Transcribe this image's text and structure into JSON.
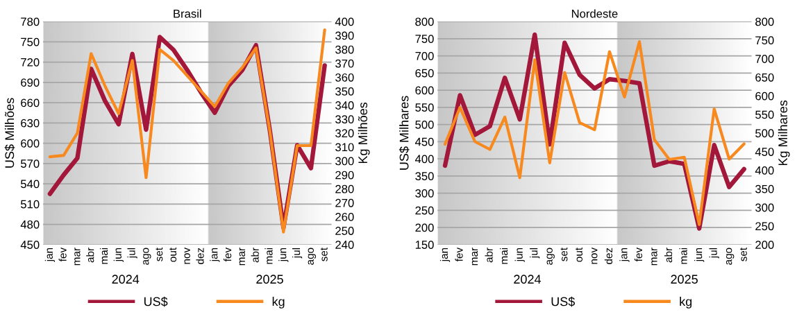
{
  "chart_data": [
    {
      "type": "line",
      "title": "Brasil",
      "ylabel": "US$ Milhões",
      "y2label": "Kg Milhões",
      "categories": [
        "jan",
        "fev",
        "mar",
        "abr",
        "mai",
        "jun",
        "jul",
        "ago",
        "set",
        "out",
        "nov",
        "dez",
        "jan",
        "fev",
        "mar",
        "abr",
        "mai",
        "jun",
        "jul",
        "ago",
        "set"
      ],
      "series": [
        {
          "name": "US$",
          "color": "#a3173a",
          "values": [
            525,
            553,
            578,
            710,
            663,
            628,
            732,
            620,
            757,
            738,
            708,
            675,
            645,
            685,
            708,
            745,
            620,
            475,
            597,
            563,
            715
          ]
        },
        {
          "name": "kg",
          "color": "#f7891f",
          "axis": "y2",
          "values": [
            303,
            304,
            320,
            377,
            354,
            334,
            372,
            288,
            380,
            372,
            361,
            350,
            339,
            356,
            367,
            381,
            322,
            249,
            311,
            311,
            394
          ]
        }
      ],
      "ylim": [
        450,
        780
      ],
      "yticks": [
        450,
        480,
        510,
        540,
        570,
        600,
        630,
        660,
        690,
        720,
        750,
        780
      ],
      "y2lim": [
        240,
        400
      ],
      "y2ticks": [
        240,
        250,
        260,
        270,
        280,
        290,
        300,
        310,
        320,
        330,
        340,
        350,
        360,
        370,
        380,
        390,
        400
      ],
      "grid": "y",
      "legend": "bottom",
      "line_style": "solid",
      "marker": "none",
      "annotations": [
        "2024",
        "2025"
      ]
    },
    {
      "type": "line",
      "title": "Nordeste",
      "ylabel": "US$ Milhares",
      "y2label": "Kg Milhares",
      "categories": [
        "jan",
        "fev",
        "mar",
        "abr",
        "mai",
        "jun",
        "jul",
        "ago",
        "set",
        "out",
        "nov",
        "dez",
        "jan",
        "fev",
        "mar",
        "abr",
        "mai",
        "jun",
        "jul",
        "ago",
        "set"
      ],
      "series": [
        {
          "name": "US$",
          "color": "#a3173a",
          "values": [
            380,
            585,
            470,
            495,
            636,
            515,
            762,
            442,
            738,
            645,
            605,
            632,
            627,
            620,
            380,
            393,
            385,
            197,
            440,
            318,
            370
          ]
        },
        {
          "name": "kg",
          "color": "#f7891f",
          "axis": "y2",
          "values": [
            470,
            569,
            477,
            456,
            543,
            380,
            697,
            420,
            663,
            528,
            509,
            719,
            597,
            746,
            482,
            429,
            435,
            254,
            565,
            430,
            471
          ]
        }
      ],
      "ylim": [
        150,
        800
      ],
      "yticks": [
        150,
        200,
        250,
        300,
        350,
        400,
        450,
        500,
        550,
        600,
        650,
        700,
        750,
        800
      ],
      "y2lim": [
        200,
        800
      ],
      "y2ticks": [
        200,
        250,
        300,
        350,
        400,
        450,
        500,
        550,
        600,
        650,
        700,
        750,
        800
      ],
      "grid": "y",
      "legend": "bottom",
      "line_style": "solid",
      "marker": "none",
      "annotations": [
        "2024",
        "2025"
      ]
    }
  ]
}
